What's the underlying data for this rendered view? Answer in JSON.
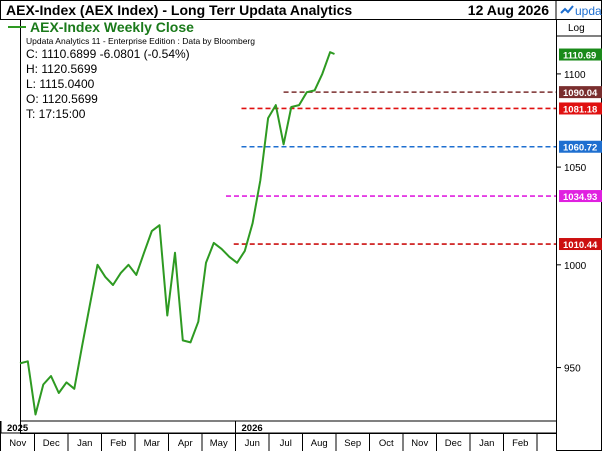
{
  "header": {
    "title": "AEX-Index (AEX Index) - Long Terr  Updata Analytics",
    "date": "12 Aug 2026",
    "brand": "updata",
    "scale_label": "Log"
  },
  "legend": {
    "chart_name": "AEX-Index Weekly Close",
    "edition_line": "Updata Analytics 11 - Enterprise Edition : Data by Bloomberg",
    "ohlc": [
      "C: 1110.6899  -6.0801 (-0.54%)",
      "H: 1120.5699",
      "L: 1115.0400",
      "O: 1120.5699",
      "T: 17:15:00"
    ]
  },
  "colors": {
    "line": "#2e9a22",
    "frame_header": "#000000",
    "brand": "#1e6fd0"
  },
  "chart_data": {
    "type": "line",
    "title": "AEX-Index Weekly Close",
    "y_scale": "log",
    "ylim": [
      925,
      1130
    ],
    "y_ticks": [
      950,
      1000,
      1050,
      1100
    ],
    "x_range": [
      "2025-11-01",
      "2027-02-28"
    ],
    "x_tick_labels": [
      "Nov",
      "Dec",
      "Jan",
      "Feb",
      "Mar",
      "Apr",
      "May",
      "Jun",
      "Jul",
      "Aug",
      "Sep",
      "Oct",
      "Nov",
      "Dec",
      "Jan",
      "Feb"
    ],
    "year_labels": [
      {
        "label": "2025",
        "month": "Nov"
      },
      {
        "label": "2026",
        "month": "Jun"
      }
    ],
    "grid": false,
    "series": [
      {
        "x": [
          "2025-11-01",
          "2025-11-08",
          "2025-11-15",
          "2025-11-22",
          "2025-11-29",
          "2025-12-06",
          "2025-12-13",
          "2025-12-20",
          "2025-12-27",
          "2026-01-03",
          "2026-01-10",
          "2026-01-17",
          "2026-01-24",
          "2026-01-31",
          "2026-02-07",
          "2026-02-14",
          "2026-02-21",
          "2026-02-28",
          "2026-03-07",
          "2026-03-14",
          "2026-03-21",
          "2026-03-28",
          "2026-04-04",
          "2026-04-11",
          "2026-04-18",
          "2026-04-25",
          "2026-05-02",
          "2026-05-09",
          "2026-05-16",
          "2026-05-23",
          "2026-05-30",
          "2026-06-06",
          "2026-06-13",
          "2026-06-20",
          "2026-06-27",
          "2026-07-04",
          "2026-07-11",
          "2026-07-18",
          "2026-07-25",
          "2026-08-01",
          "2026-08-08",
          "2026-08-12"
        ],
        "values": [
          952,
          953,
          928,
          942,
          946,
          938,
          943,
          940,
          960,
          980,
          1000,
          994,
          990,
          996,
          1000,
          995,
          1006,
          1017,
          1020,
          975,
          1006,
          963,
          962,
          972,
          1001,
          1011,
          1008,
          1004,
          1001,
          1007,
          1021,
          1043,
          1076,
          1083,
          1062,
          1082,
          1083,
          1090,
          1091,
          1100,
          1112,
          1111
        ]
      }
    ],
    "reference_lines": [
      {
        "value": 1090.04,
        "label": "1090.04",
        "color": "#7a2e2e",
        "start": "2026-06-27"
      },
      {
        "value": 1081.18,
        "label": "1081.18",
        "color": "#e01010",
        "start": "2026-05-20"
      },
      {
        "value": 1060.72,
        "label": "1060.72",
        "color": "#1e6fd0",
        "start": "2026-05-20"
      },
      {
        "value": 1034.93,
        "label": "1034.93",
        "color": "#e020e0",
        "start": "2026-05-06"
      },
      {
        "value": 1010.44,
        "label": "1010.44",
        "color": "#cc1010",
        "start": "2026-05-13"
      }
    ],
    "last_value": {
      "value": 1110.69,
      "label": "1110.69",
      "color": "#1a8a1a"
    }
  }
}
